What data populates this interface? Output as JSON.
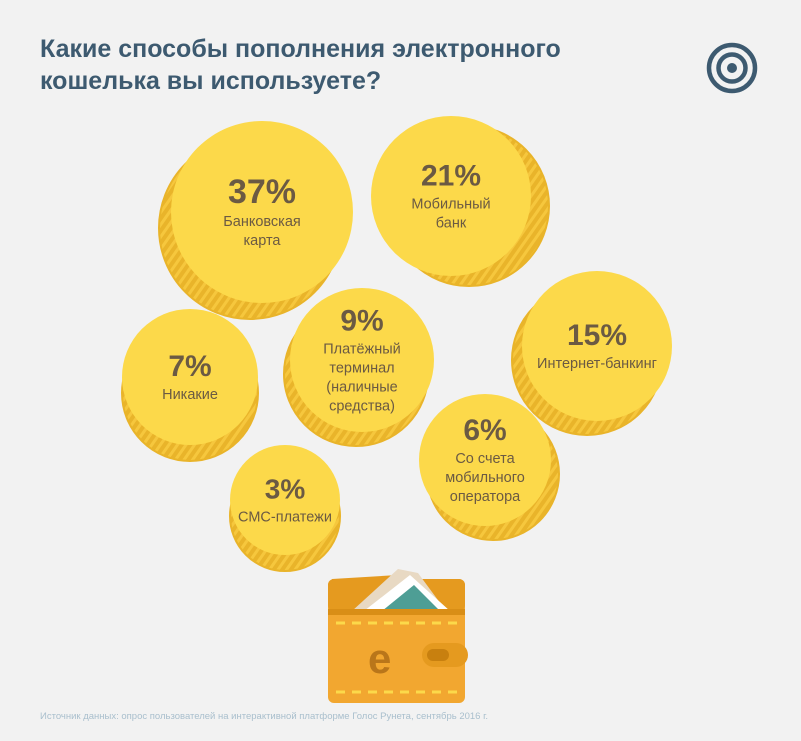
{
  "header": {
    "title_line1": "Какие способы пополнения электронного",
    "title_line2": "кошелька вы используете?",
    "logo_icon": "concentric-circles-icon"
  },
  "chart_data": {
    "type": "bubble",
    "categories": [
      "Банковская карта",
      "Мобильный банк",
      "Интернет-банкинг",
      "Платёжный терминал (наличные средства)",
      "Никакие",
      "Со счета мобильного оператора",
      "СМС-платежи"
    ],
    "values": [
      37,
      21,
      15,
      9,
      7,
      6,
      3
    ],
    "unit": "%",
    "items": [
      {
        "key": "bank-card",
        "percent_label": "37%",
        "label_lines": [
          "Банковская",
          "карта"
        ]
      },
      {
        "key": "mobile-bank",
        "percent_label": "21%",
        "label_lines": [
          "Мобильный",
          "банк"
        ]
      },
      {
        "key": "internet-banking",
        "percent_label": "15%",
        "label_lines": [
          "Интернет-банкинг"
        ]
      },
      {
        "key": "payment-terminal",
        "percent_label": "9%",
        "label_lines": [
          "Платёжный",
          "терминал",
          "(наличные",
          "средства)"
        ]
      },
      {
        "key": "none",
        "percent_label": "7%",
        "label_lines": [
          "Никакие"
        ]
      },
      {
        "key": "mobile-operator",
        "percent_label": "6%",
        "label_lines": [
          "Со счета",
          "мобильного",
          "оператора"
        ]
      },
      {
        "key": "sms-payments",
        "percent_label": "3%",
        "label_lines": [
          "СМС-платежи"
        ]
      }
    ],
    "colors": {
      "coin_face": "#fcd94a",
      "coin_edge": "#e9b42a",
      "text": "#6b5a43"
    }
  },
  "wallet": {
    "icon": "wallet-icon",
    "currency_symbol": "е",
    "colors": {
      "body": "#f2a730",
      "flap": "#e59a1f",
      "note": "#4e9e95"
    }
  },
  "source": "Источник данных: опрос пользователей на интерактивной платформе Голос Рунета, сентябрь 2016 г."
}
